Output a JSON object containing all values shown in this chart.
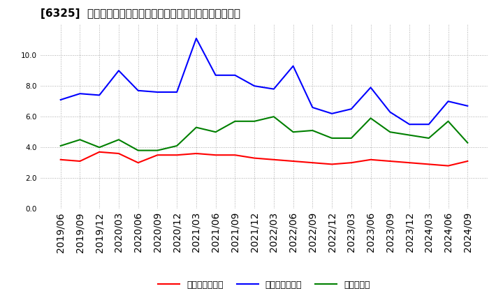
{
  "title": "[6325]  売上債権回転率、買入債務回転率、在庫回転率の推移",
  "dates": [
    "2019/06",
    "2019/09",
    "2019/12",
    "2020/03",
    "2020/06",
    "2020/09",
    "2020/12",
    "2021/03",
    "2021/06",
    "2021/09",
    "2021/12",
    "2022/03",
    "2022/06",
    "2022/09",
    "2022/12",
    "2023/03",
    "2023/06",
    "2023/09",
    "2023/12",
    "2024/03",
    "2024/06",
    "2024/09"
  ],
  "receivables_turnover": [
    3.2,
    3.1,
    3.7,
    3.6,
    3.0,
    3.5,
    3.5,
    3.6,
    3.5,
    3.5,
    3.3,
    3.2,
    3.1,
    3.0,
    2.9,
    3.0,
    3.2,
    3.1,
    3.0,
    2.9,
    2.8,
    3.1
  ],
  "payables_turnover": [
    7.1,
    7.5,
    7.4,
    9.0,
    7.7,
    7.6,
    7.6,
    11.1,
    8.7,
    8.7,
    8.0,
    7.8,
    9.3,
    6.6,
    6.2,
    6.5,
    7.9,
    6.3,
    5.5,
    5.5,
    7.0,
    6.7
  ],
  "inventory_turnover": [
    4.1,
    4.5,
    4.0,
    4.5,
    3.8,
    3.8,
    4.1,
    5.3,
    5.0,
    5.7,
    5.7,
    6.0,
    5.0,
    5.1,
    4.6,
    4.6,
    5.9,
    5.0,
    4.8,
    4.6,
    5.7,
    4.3
  ],
  "receivables_color": "#ff0000",
  "payables_color": "#0000ff",
  "inventory_color": "#008000",
  "legend_labels": [
    "売上債権回転率",
    "買入債務回転率",
    "在庫回転率"
  ],
  "ylim": [
    0,
    12
  ],
  "yticks": [
    0.0,
    2.0,
    4.0,
    6.0,
    8.0,
    10.0
  ],
  "background_color": "#ffffff",
  "grid_color": "#aaaaaa",
  "title_fontsize": 11,
  "tick_fontsize": 7.5,
  "legend_fontsize": 9
}
